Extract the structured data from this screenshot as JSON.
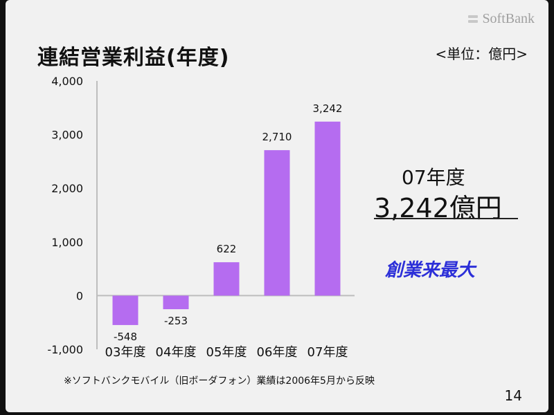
{
  "brand": {
    "logo_text": "SoftBank",
    "logo_color": "#a0a0a0"
  },
  "title": "連結営業利益(年度)",
  "unit_label": "<単位：億円>",
  "summary": {
    "year": "07年度",
    "value": "3,242億円"
  },
  "slogan": "創業来最大",
  "footnote": "※ソフトバンクモバイル（旧ボーダフォン）業績は2006年5月から反映",
  "page_number": "14",
  "colors": {
    "bar": "#b56cf0",
    "slogan": "#2c2fd8",
    "background": "#f1f1f1"
  },
  "chart_data": {
    "type": "bar",
    "categories": [
      "03年度",
      "04年度",
      "05年度",
      "06年度",
      "07年度"
    ],
    "values": [
      -548,
      -253,
      622,
      2710,
      3242
    ],
    "value_labels": [
      "-548",
      "-253",
      "622",
      "2,710",
      "3,242"
    ],
    "yticks": [
      4000,
      3000,
      2000,
      1000,
      0,
      -1000
    ],
    "ytick_labels": [
      "4,000",
      "3,000",
      "2,000",
      "1,000",
      "0",
      "-1,000"
    ],
    "ylim": [
      -1000,
      4000
    ],
    "grid": false,
    "title": "",
    "xlabel": "",
    "ylabel": ""
  }
}
